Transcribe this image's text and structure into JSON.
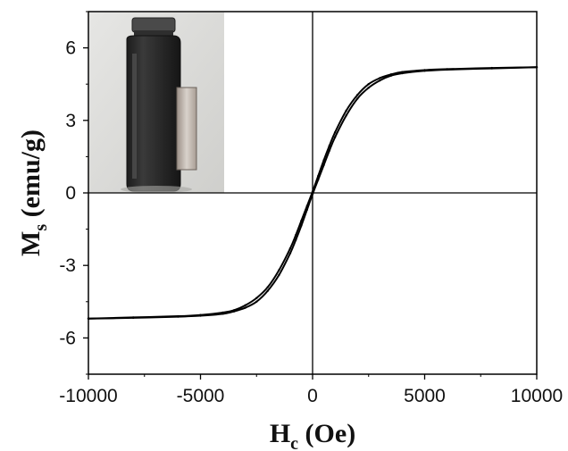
{
  "chart_data": {
    "type": "line",
    "xlabel": "H",
    "xlabel_sub": "c",
    "xlabel_unit": " (Oe)",
    "ylabel": "M",
    "ylabel_sub": "s",
    "ylabel_unit": " (emu/g)",
    "xlim": [
      -10000,
      10000
    ],
    "ylim": [
      -7.5,
      7.5
    ],
    "x_ticks": [
      -10000,
      -5000,
      0,
      5000,
      10000
    ],
    "x_tick_labels": [
      "-10000",
      "-5000",
      "0",
      "5000",
      "10000"
    ],
    "y_ticks": [
      -6,
      -3,
      0,
      3,
      6
    ],
    "y_tick_labels": [
      "-6",
      "-3",
      "0",
      "3",
      "6"
    ],
    "grid": false,
    "zero_lines": true,
    "inset": "photo of a dark liquid in a glass vial held next to a magnet",
    "colors": {
      "line": "#000000",
      "axis": "#000000"
    },
    "series": [
      {
        "x": [
          -10000,
          -8000,
          -6000,
          -5000,
          -4000,
          -3500,
          -3000,
          -2500,
          -2000,
          -1500,
          -1000,
          -750,
          -500,
          -250,
          0,
          250,
          500,
          750,
          1000,
          1500,
          2000,
          2500,
          3000,
          3500,
          4000,
          5000,
          6000,
          8000,
          10000
        ],
        "y": [
          -5.2,
          -5.15,
          -5.1,
          -5.05,
          -4.95,
          -4.85,
          -4.65,
          -4.35,
          -3.9,
          -3.2,
          -2.3,
          -1.75,
          -1.15,
          -0.55,
          0.05,
          0.7,
          1.35,
          1.95,
          2.5,
          3.4,
          4.05,
          4.5,
          4.75,
          4.9,
          5.0,
          5.08,
          5.12,
          5.17,
          5.2
        ]
      },
      {
        "x": [
          10000,
          8000,
          6000,
          5000,
          4000,
          3500,
          3000,
          2500,
          2000,
          1500,
          1000,
          750,
          500,
          250,
          0,
          -250,
          -500,
          -750,
          -1000,
          -1500,
          -2000,
          -2500,
          -3000,
          -3500,
          -4000,
          -5000,
          -6000,
          -8000,
          -10000
        ],
        "y": [
          5.2,
          5.15,
          5.1,
          5.05,
          4.95,
          4.85,
          4.65,
          4.35,
          3.9,
          3.2,
          2.3,
          1.75,
          1.15,
          0.55,
          -0.05,
          -0.7,
          -1.35,
          -1.95,
          -2.5,
          -3.4,
          -4.05,
          -4.5,
          -4.75,
          -4.9,
          -5.0,
          -5.08,
          -5.12,
          -5.17,
          -5.2
        ]
      }
    ]
  }
}
